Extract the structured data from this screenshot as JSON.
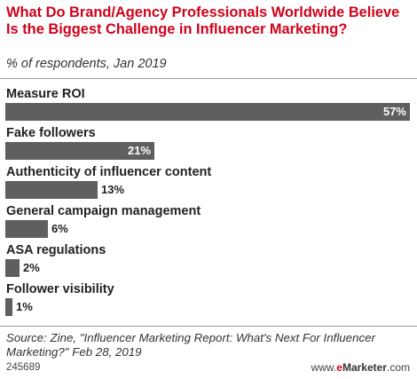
{
  "chart_data": {
    "type": "bar",
    "orientation": "horizontal",
    "title": "What Do Brand/Agency Professionals Worldwide Believe Is the Biggest Challenge in Influencer Marketing?",
    "subtitle": "% of respondents, Jan 2019",
    "categories": [
      "Measure ROI",
      "Fake followers",
      "Authenticity of influencer content",
      "General campaign management",
      "ASA regulations",
      "Follower visibility"
    ],
    "values": [
      57,
      21,
      13,
      6,
      2,
      1
    ],
    "value_suffix": "%",
    "xlim": [
      0,
      57
    ],
    "grid": false,
    "bar_color": "#5f5f5f"
  },
  "footer": {
    "source": "Source: Zine, \"Influencer Marketing Report: What's Next For Influencer Marketing?\" Feb 28, 2019",
    "chart_id": "245689",
    "brand_prefix": "www.",
    "brand_e": "e",
    "brand_name": "Marketer",
    "brand_suffix": ".com"
  },
  "colors": {
    "title": "#d0021b",
    "bar": "#5f5f5f",
    "rule": "#9a9a9a"
  }
}
